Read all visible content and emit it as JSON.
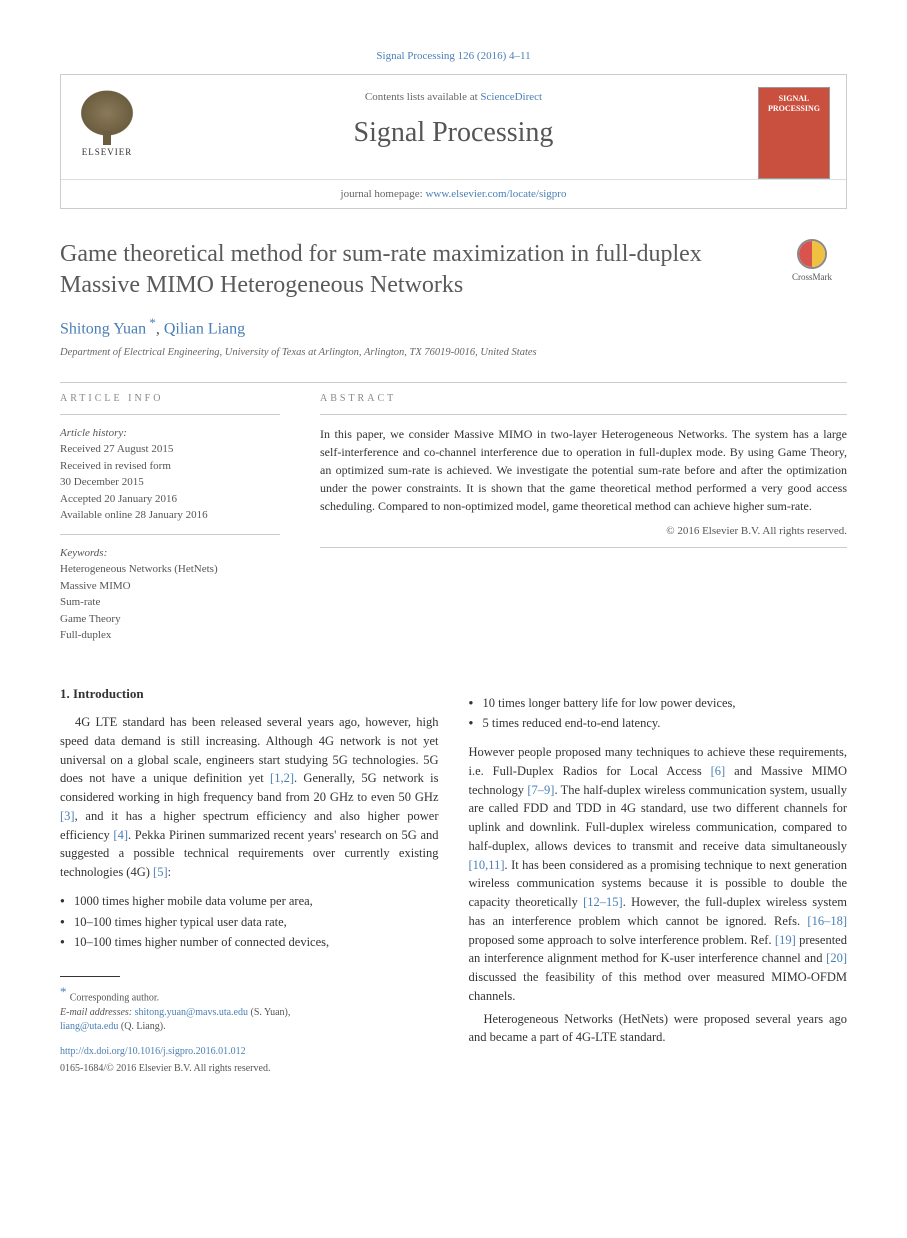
{
  "header": {
    "citation": "Signal Processing 126 (2016) 4–11",
    "contents_prefix": "Contents lists available at ",
    "contents_link": "ScienceDirect",
    "journal_name": "Signal Processing",
    "homepage_prefix": "journal homepage: ",
    "homepage_url": "www.elsevier.com/locate/sigpro",
    "elsevier_label": "ELSEVIER",
    "cover_title": "SIGNAL PROCESSING"
  },
  "title": "Game theoretical method for sum-rate maximization in full-duplex Massive MIMO Heterogeneous Networks",
  "crossmark": "CrossMark",
  "authors": {
    "a1": "Shitong Yuan",
    "a2": "Qilian Liang",
    "sep": ", "
  },
  "affiliation": "Department of Electrical Engineering, University of Texas at Arlington, Arlington, TX 76019-0016, United States",
  "info": {
    "label": "ARTICLE INFO",
    "history_label": "Article history:",
    "received": "Received 27 August 2015",
    "revised1": "Received in revised form",
    "revised2": "30 December 2015",
    "accepted": "Accepted 20 January 2016",
    "online": "Available online 28 January 2016",
    "keywords_label": "Keywords:",
    "kw1": "Heterogeneous Networks (HetNets)",
    "kw2": "Massive MIMO",
    "kw3": "Sum-rate",
    "kw4": "Game Theory",
    "kw5": "Full-duplex"
  },
  "abstract": {
    "label": "ABSTRACT",
    "text": "In this paper, we consider Massive MIMO in two-layer Heterogeneous Networks. The system has a large self-interference and co-channel interference due to operation in full-duplex mode. By using Game Theory, an optimized sum-rate is achieved. We investigate the potential sum-rate before and after the optimization under the power constraints. It is shown that the game theoretical method performed a very good access scheduling. Compared to non-optimized model, game theoretical method can achieve higher sum-rate.",
    "copyright": "© 2016 Elsevier B.V. All rights reserved."
  },
  "section1": {
    "heading": "1.  Introduction",
    "p1a": "4G LTE standard has been released several years ago, however, high speed data demand is still increasing. Although 4G network is not yet universal on a global scale, engineers start studying 5G technologies. 5G does not have a unique definition yet ",
    "ref1": "[1,2]",
    "p1b": ". Generally, 5G network is considered working in high frequency band from 20 GHz to even 50 GHz ",
    "ref2": "[3]",
    "p1c": ", and it has a higher spectrum efficiency and also higher power efficiency ",
    "ref3": "[4]",
    "p1d": ". Pekka Pirinen summarized recent years' research on 5G and suggested a possible technical requirements over currently existing technologies (4G) ",
    "ref4": "[5]",
    "p1e": ":",
    "b1": "1000 times higher mobile data volume per area,",
    "b2": "10–100 times higher typical user data rate,",
    "b3": "10–100 times higher number of connected devices,",
    "b4": "10 times longer battery life for low power devices,",
    "b5": "5 times reduced end-to-end latency.",
    "p2a": "However people proposed many techniques to achieve these requirements, i.e. Full-Duplex Radios for Local Access ",
    "ref5": "[6]",
    "p2b": " and Massive MIMO technology ",
    "ref6": "[7–9]",
    "p2c": ". The half-duplex wireless communication system, usually are called FDD and TDD in 4G standard, use two different channels for uplink and downlink. Full-duplex wireless communication, compared to half-duplex, allows devices to transmit and receive data simultaneously ",
    "ref7": "[10,11]",
    "p2d": ". It has been considered as a promising technique to next generation wireless communication systems because it is possible to double the capacity theoretically ",
    "ref8": "[12–15]",
    "p2e": ". However, the full-duplex wireless system has an interference problem which cannot be ignored. Refs. ",
    "ref9": "[16–18]",
    "p2f": " proposed some approach to solve interference problem. Ref. ",
    "ref10": "[19]",
    "p2g": " presented an interference alignment method for K-user interference channel and ",
    "ref11": "[20]",
    "p2h": " discussed the feasibility of this method over measured MIMO-OFDM channels.",
    "p3": "Heterogeneous Networks (HetNets) were proposed several years ago and became a part of 4G-LTE standard."
  },
  "footnotes": {
    "corr": "Corresponding author.",
    "email_label": "E-mail addresses: ",
    "email1": "shitong.yuan@mavs.uta.edu",
    "email1_name": " (S. Yuan),",
    "email2": "liang@uta.edu",
    "email2_name": " (Q. Liang).",
    "doi": "http://dx.doi.org/10.1016/j.sigpro.2016.01.012",
    "issn": "0165-1684/© 2016 Elsevier B.V. All rights reserved."
  },
  "colors": {
    "link": "#4a7fb5",
    "text": "#333333",
    "muted": "#666666",
    "cover": "#c94f3e",
    "border": "#cccccc"
  }
}
